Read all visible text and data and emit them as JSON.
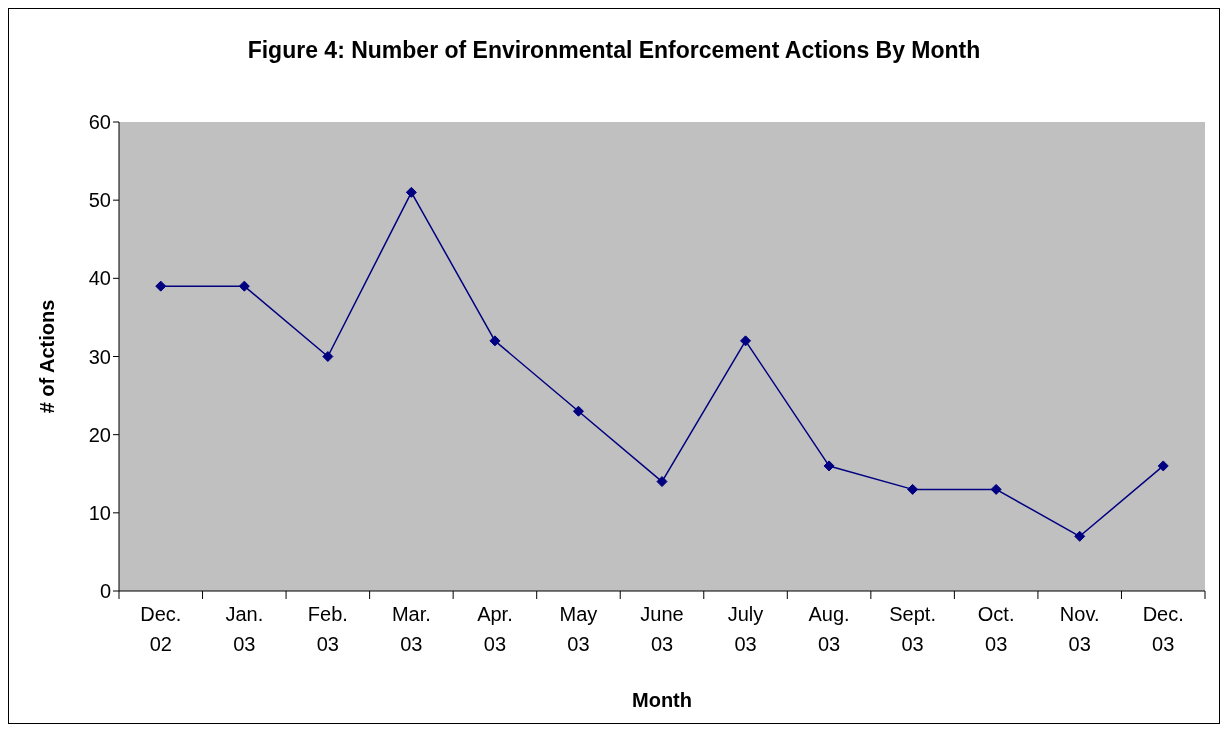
{
  "chart_data": {
    "type": "line",
    "title": "Figure 4: Number of Environmental Enforcement Actions By Month",
    "xlabel": "Month",
    "ylabel": "# of Actions",
    "categories": [
      "Dec. 02",
      "Jan. 03",
      "Feb. 03",
      "Mar. 03",
      "Apr. 03",
      "May 03",
      "June 03",
      "July 03",
      "Aug. 03",
      "Sept. 03",
      "Oct. 03",
      "Nov. 03",
      "Dec. 03"
    ],
    "series": [
      {
        "color": "#000080",
        "values": [
          39,
          39,
          30,
          51,
          32,
          23,
          14,
          32,
          16,
          13,
          13,
          7,
          16
        ]
      }
    ],
    "ylim": [
      0,
      60
    ],
    "yticks": [
      0,
      10,
      20,
      30,
      40,
      50,
      60
    ],
    "marker": "diamond",
    "line_style": "solid",
    "legend": false
  }
}
